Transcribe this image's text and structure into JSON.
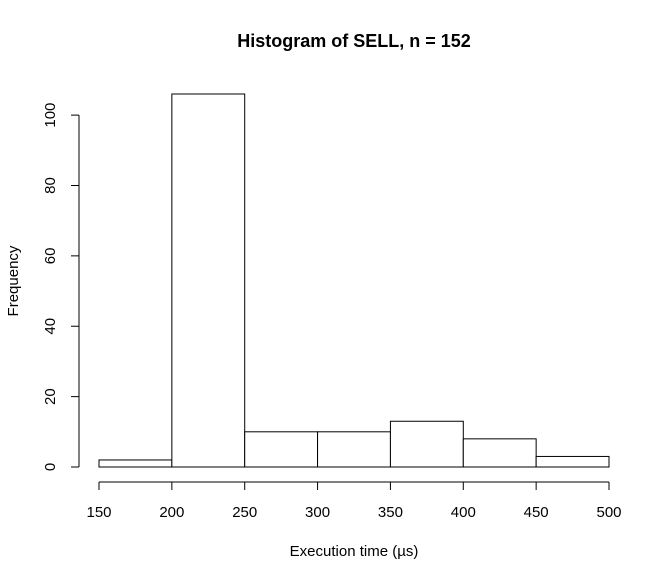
{
  "chart_data": {
    "type": "bar",
    "title": "Histogram of SELL, n = 152",
    "xlabel": "Execution time (µs)",
    "ylabel": "Frequency",
    "bins": [
      {
        "from": 150,
        "to": 200,
        "count": 2
      },
      {
        "from": 200,
        "to": 250,
        "count": 106
      },
      {
        "from": 250,
        "to": 300,
        "count": 10
      },
      {
        "from": 300,
        "to": 350,
        "count": 10
      },
      {
        "from": 350,
        "to": 400,
        "count": 13
      },
      {
        "from": 400,
        "to": 450,
        "count": 8
      },
      {
        "from": 450,
        "to": 500,
        "count": 3
      }
    ],
    "xlim": [
      150,
      500
    ],
    "ylim": [
      0,
      106
    ],
    "xticks": [
      "150",
      "200",
      "250",
      "300",
      "350",
      "400",
      "450",
      "500"
    ],
    "yticks": [
      "0",
      "20",
      "40",
      "60",
      "80",
      "100"
    ],
    "grid": false,
    "bar_color": "#ffffff",
    "edge_color": "#000000"
  }
}
